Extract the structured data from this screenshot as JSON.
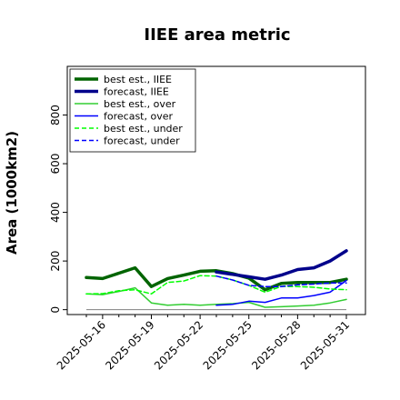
{
  "chart_data": {
    "type": "line",
    "title": "IIEE area metric",
    "xlabel": "",
    "ylabel": "Area (1000km2)",
    "ylim": [
      -20,
      1000
    ],
    "yticks": [
      0,
      200,
      400,
      600,
      800
    ],
    "x": [
      "2025-05-15",
      "2025-05-16",
      "2025-05-17",
      "2025-05-18",
      "2025-05-19",
      "2025-05-20",
      "2025-05-21",
      "2025-05-22",
      "2025-05-23",
      "2025-05-24",
      "2025-05-25",
      "2025-05-26",
      "2025-05-27",
      "2025-05-28",
      "2025-05-29",
      "2025-05-30",
      "2025-05-31"
    ],
    "xtick_labels": [
      "2025-05-16",
      "2025-05-19",
      "2025-05-22",
      "2025-05-25",
      "2025-05-28",
      "2025-05-31"
    ],
    "highlight_tick": "2025-05-22",
    "highlight_color": "#228b22",
    "grid": false,
    "legend_position": "top-left",
    "series": [
      {
        "name": "best est., IIEE",
        "color": "#006400",
        "style": "solid",
        "width": 3.5,
        "values": [
          132,
          128,
          150,
          172,
          95,
          128,
          142,
          158,
          160,
          148,
          130,
          82,
          108,
          112,
          112,
          112,
          125
        ]
      },
      {
        "name": "forecast, IIEE",
        "color": "#00008b",
        "style": "solid",
        "width": 3.5,
        "values": [
          null,
          null,
          null,
          null,
          null,
          null,
          null,
          null,
          155,
          145,
          135,
          125,
          142,
          165,
          172,
          200,
          242
        ]
      },
      {
        "name": "best est., over",
        "color": "#32cd32",
        "style": "solid",
        "width": 1.5,
        "values": [
          65,
          62,
          75,
          90,
          28,
          18,
          22,
          18,
          22,
          25,
          30,
          10,
          12,
          15,
          18,
          28,
          42
        ]
      },
      {
        "name": "forecast, over",
        "color": "#0000ff",
        "style": "solid",
        "width": 1.5,
        "values": [
          null,
          null,
          null,
          null,
          null,
          null,
          null,
          null,
          18,
          22,
          35,
          30,
          48,
          48,
          58,
          72,
          120
        ]
      },
      {
        "name": "best est., under",
        "color": "#00ff00",
        "style": "dashed",
        "width": 1.5,
        "values": [
          65,
          66,
          78,
          82,
          65,
          112,
          118,
          140,
          138,
          122,
          100,
          72,
          96,
          95,
          92,
          85,
          82
        ]
      },
      {
        "name": "forecast, under",
        "color": "#0000ff",
        "style": "dashed",
        "width": 1.5,
        "values": [
          null,
          null,
          null,
          null,
          null,
          null,
          null,
          null,
          138,
          122,
          100,
          95,
          95,
          102,
          105,
          110,
          110
        ]
      }
    ],
    "baseline": {
      "value": 0,
      "color": "#808080"
    }
  }
}
